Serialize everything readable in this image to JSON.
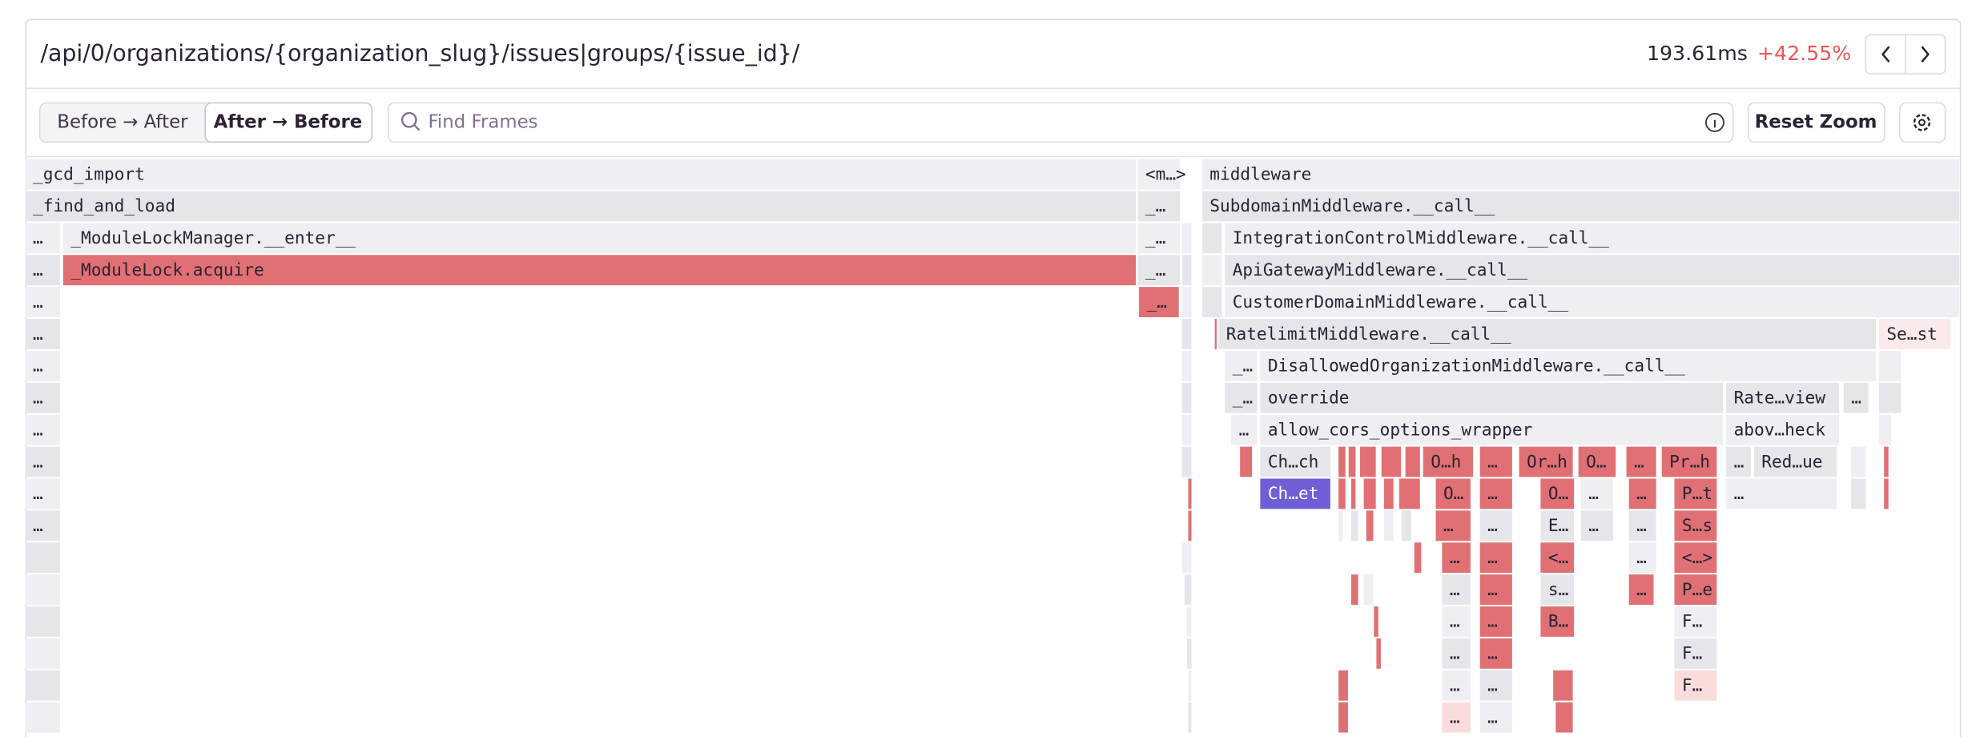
{
  "header": {
    "endpoint": "/api/0/organizations/{organization_slug}/issues|groups/{issue_id}/",
    "duration": "193.61ms",
    "change": "+42.55%"
  },
  "toolbar": {
    "before_after": "Before → After",
    "after_before": "After → Before",
    "search_placeholder": "Find Frames",
    "reset_zoom": "Reset Zoom"
  },
  "frames": [
    {
      "label": "_gcd_import"
    },
    {
      "label": "<m…>"
    },
    {
      "label": "middleware"
    },
    {
      "label": "_find_and_load"
    },
    {
      "label": "_…"
    },
    {
      "label": "SubdomainMiddleware.__call__"
    },
    {
      "label": "…"
    },
    {
      "label": "_ModuleLockManager.__enter__"
    },
    {
      "label": "_…"
    },
    {
      "label": "IntegrationControlMiddleware.__call__"
    },
    {
      "label": "…"
    },
    {
      "label": "_ModuleLock.acquire"
    },
    {
      "label": "_…"
    },
    {
      "label": "ApiGatewayMiddleware.__call__"
    },
    {
      "label": "…"
    },
    {
      "label": "_…"
    },
    {
      "label": "CustomerDomainMiddleware.__call__"
    },
    {
      "label": "…"
    },
    {
      "label": "RatelimitMiddleware.__call__"
    },
    {
      "label": "Se…st"
    },
    {
      "label": "…"
    },
    {
      "label": "_…"
    },
    {
      "label": "DisallowedOrganizationMiddleware.__call__"
    },
    {
      "label": "…"
    },
    {
      "label": "_…"
    },
    {
      "label": "override"
    },
    {
      "label": "Rate…view"
    },
    {
      "label": "…"
    },
    {
      "label": "…"
    },
    {
      "label": "…"
    },
    {
      "label": "allow_cors_options_wrapper"
    },
    {
      "label": "abov…heck"
    },
    {
      "label": "…"
    },
    {
      "label": "Ch…ch"
    },
    {
      "label": "O…h"
    },
    {
      "label": "…"
    },
    {
      "label": "Or…h"
    },
    {
      "label": "O…"
    },
    {
      "label": "…"
    },
    {
      "label": "Pr…h"
    },
    {
      "label": "…"
    },
    {
      "label": "Red…ue"
    },
    {
      "label": "…"
    },
    {
      "label": "Ch…et"
    },
    {
      "label": "O…"
    },
    {
      "label": "…"
    },
    {
      "label": "O…"
    },
    {
      "label": "…"
    },
    {
      "label": "…"
    },
    {
      "label": "P…t"
    },
    {
      "label": "…"
    },
    {
      "label": "…"
    },
    {
      "label": "…"
    },
    {
      "label": "…"
    },
    {
      "label": "E…"
    },
    {
      "label": "…"
    },
    {
      "label": "…"
    },
    {
      "label": "S…s"
    },
    {
      "label": "…"
    },
    {
      "label": "…"
    },
    {
      "label": "<…"
    },
    {
      "label": "…"
    },
    {
      "label": "<…>"
    },
    {
      "label": "…"
    },
    {
      "label": "…"
    },
    {
      "label": "s…"
    },
    {
      "label": "…"
    },
    {
      "label": "P…e"
    },
    {
      "label": "…"
    },
    {
      "label": "…"
    },
    {
      "label": "B…"
    },
    {
      "label": "F…"
    },
    {
      "label": "…"
    },
    {
      "label": "…"
    },
    {
      "label": "F…"
    },
    {
      "label": "…"
    },
    {
      "label": "…"
    },
    {
      "label": "F…"
    },
    {
      "label": "…"
    },
    {
      "label": "…"
    }
  ]
}
